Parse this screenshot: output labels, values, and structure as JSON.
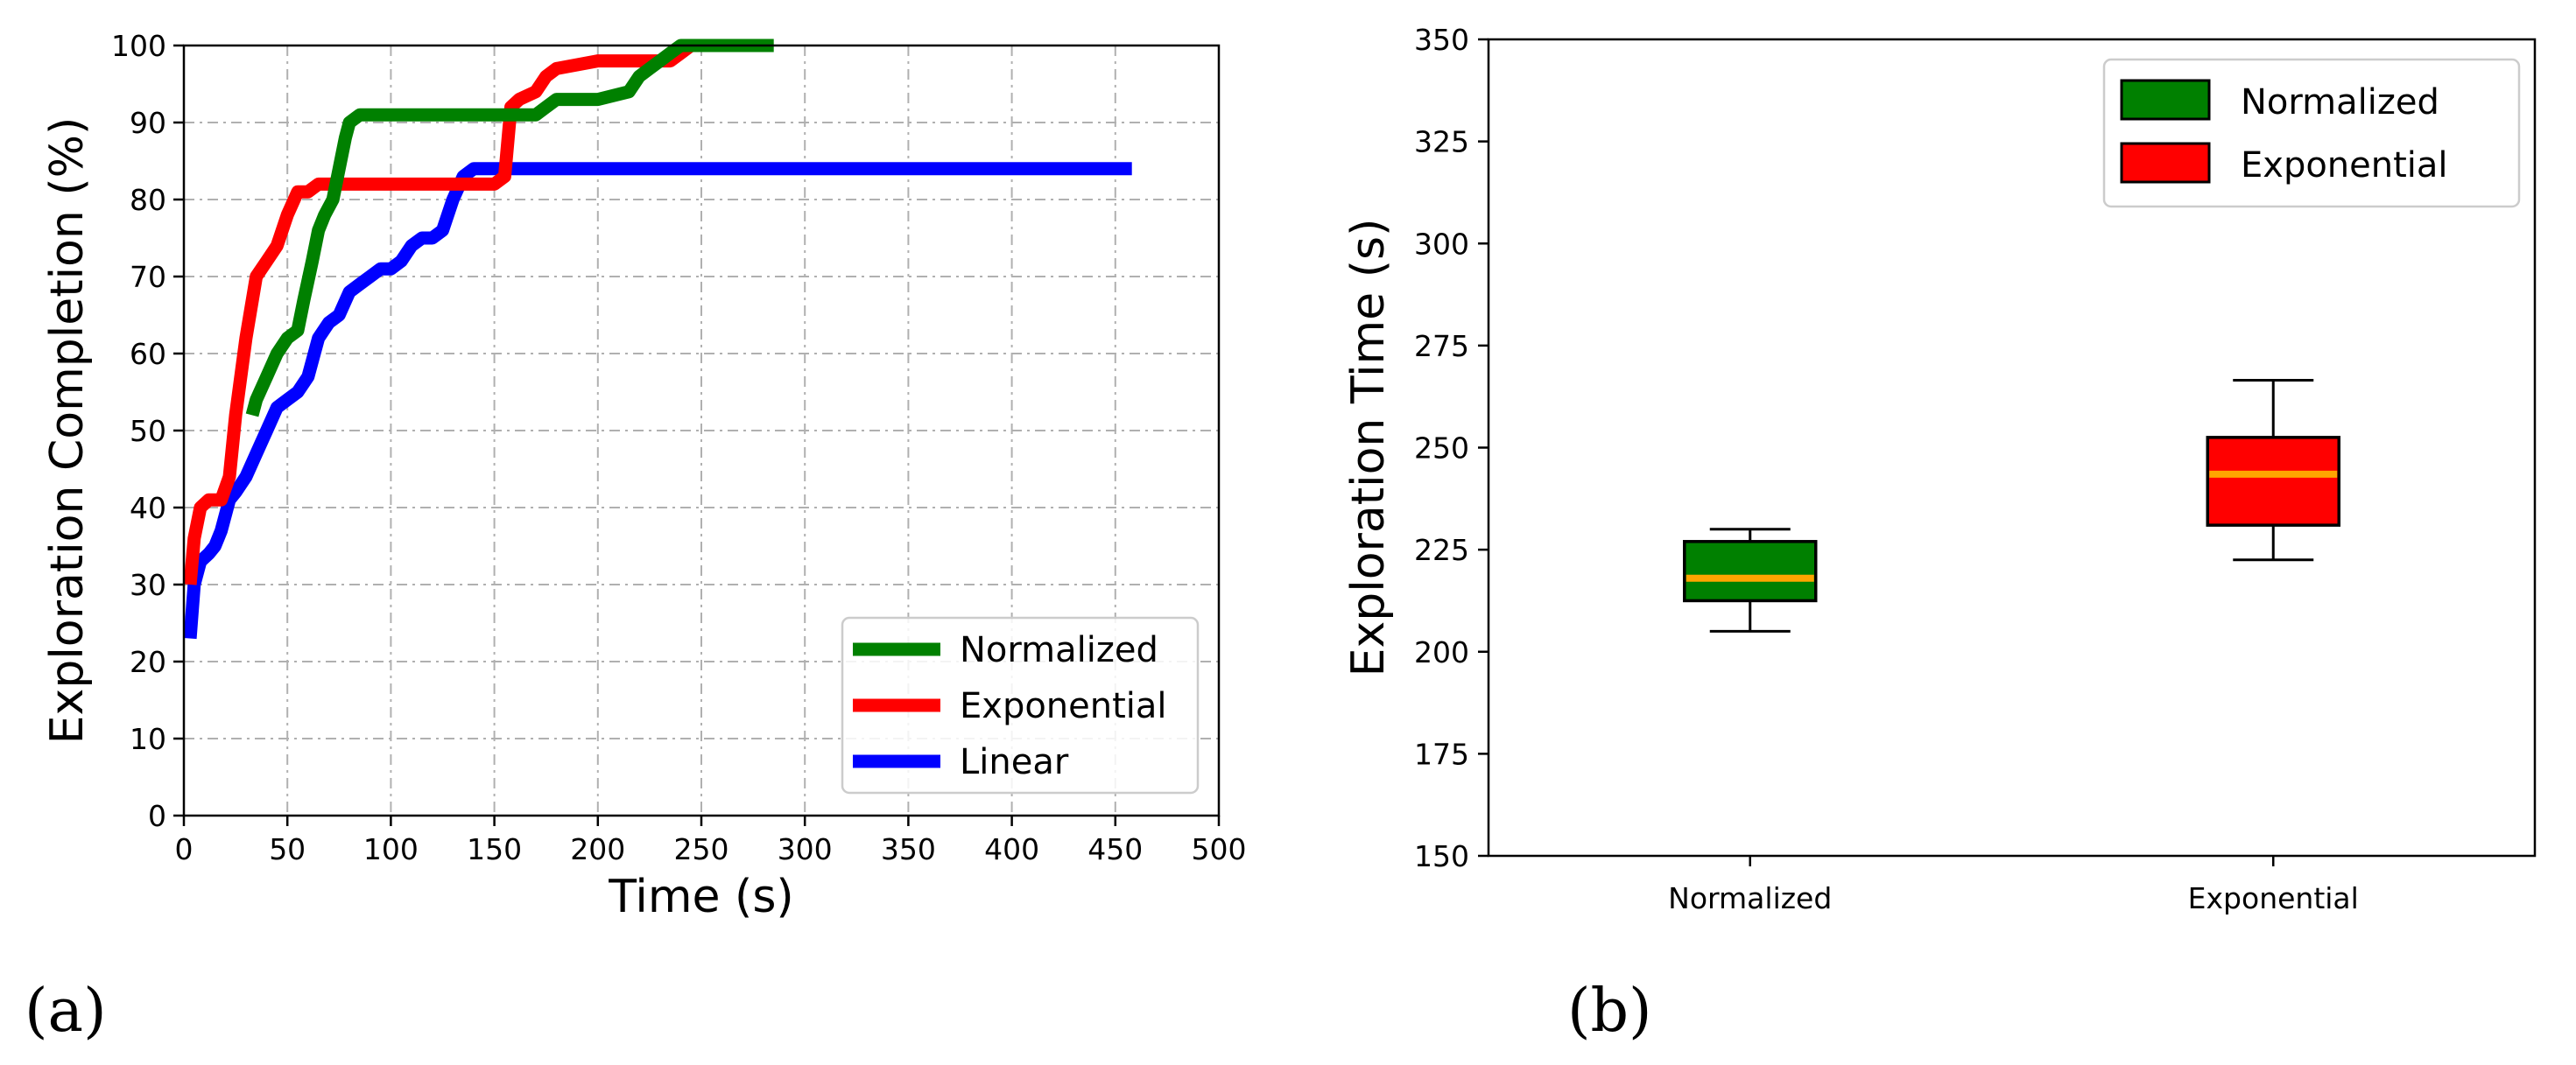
{
  "chart_data": [
    {
      "type": "line",
      "panel_label": "(a)",
      "title": "",
      "xlabel": "Time (s)",
      "ylabel": "Exploration Completion (%)",
      "xlim": [
        0,
        500
      ],
      "ylim": [
        0,
        100
      ],
      "xticks": [
        "0",
        "50",
        "100",
        "150",
        "200",
        "250",
        "300",
        "350",
        "400",
        "450",
        "500"
      ],
      "yticks": [
        "0",
        "10",
        "20",
        "30",
        "40",
        "50",
        "60",
        "70",
        "80",
        "90",
        "100"
      ],
      "grid": true,
      "legend_position": "lower-right",
      "series": [
        {
          "name": "Linear",
          "color": "#0000ff",
          "x": [
            3,
            5,
            8,
            12,
            15,
            18,
            22,
            25,
            30,
            35,
            40,
            45,
            50,
            55,
            60,
            65,
            70,
            75,
            80,
            85,
            90,
            95,
            100,
            105,
            110,
            115,
            120,
            125,
            130,
            135,
            140,
            150,
            160,
            170,
            200,
            300,
            400,
            458
          ],
          "y": [
            23,
            30,
            33,
            34,
            35,
            37,
            41,
            42,
            44,
            47,
            50,
            53,
            54,
            55,
            57,
            62,
            64,
            65,
            68,
            69,
            70,
            71,
            71,
            72,
            74,
            75,
            75,
            76,
            80,
            83,
            84,
            84,
            84,
            84,
            84,
            84,
            84,
            84
          ]
        },
        {
          "name": "Exponential",
          "color": "#ff0000",
          "x": [
            3,
            5,
            8,
            12,
            18,
            22,
            25,
            30,
            35,
            40,
            45,
            50,
            55,
            60,
            65,
            70,
            80,
            100,
            120,
            140,
            150,
            155,
            158,
            162,
            170,
            175,
            180,
            200,
            220,
            235,
            240,
            245,
            250
          ],
          "y": [
            30,
            36,
            40,
            41,
            41,
            44,
            52,
            62,
            70,
            72,
            74,
            78,
            81,
            81,
            82,
            82,
            82,
            82,
            82,
            82,
            82,
            83,
            92,
            93,
            94,
            96,
            97,
            98,
            98,
            98,
            99,
            100,
            100
          ]
        },
        {
          "name": "Normalized",
          "color": "#008000",
          "x": [
            33,
            35,
            40,
            45,
            50,
            55,
            58,
            62,
            65,
            68,
            72,
            75,
            78,
            80,
            85,
            90,
            100,
            120,
            150,
            170,
            175,
            180,
            200,
            215,
            220,
            225,
            230,
            235,
            240,
            250,
            270,
            285
          ],
          "y": [
            52,
            54,
            57,
            60,
            62,
            63,
            67,
            72,
            76,
            78,
            80,
            84,
            88,
            90,
            91,
            91,
            91,
            91,
            91,
            91,
            92,
            93,
            93,
            94,
            96,
            97,
            98,
            99,
            100,
            100,
            100,
            100
          ]
        }
      ],
      "legend_order": [
        "Normalized",
        "Exponential",
        "Linear"
      ]
    },
    {
      "type": "box",
      "panel_label": "(b)",
      "title": "",
      "xlabel": "",
      "ylabel": "Exploration Time (s)",
      "ylim": [
        150,
        350
      ],
      "yticks": [
        "150",
        "175",
        "200",
        "225",
        "250",
        "275",
        "300",
        "325",
        "350"
      ],
      "categories": [
        "Normalized",
        "Exponential"
      ],
      "legend_position": "top-right",
      "median_color": "#ffa500",
      "boxes": [
        {
          "name": "Normalized",
          "color": "#008000",
          "whisker_low": 205,
          "q1": 212.5,
          "median": 218,
          "q3": 227,
          "whisker_high": 230
        },
        {
          "name": "Exponential",
          "color": "#ff0000",
          "whisker_low": 222.5,
          "q1": 231,
          "median": 243.5,
          "q3": 252.5,
          "whisker_high": 266.5
        }
      ]
    }
  ]
}
